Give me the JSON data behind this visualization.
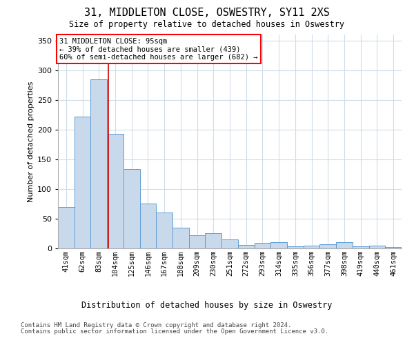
{
  "title1": "31, MIDDLETON CLOSE, OSWESTRY, SY11 2XS",
  "title2": "Size of property relative to detached houses in Oswestry",
  "xlabel": "Distribution of detached houses by size in Oswestry",
  "ylabel": "Number of detached properties",
  "categories": [
    "41sqm",
    "62sqm",
    "83sqm",
    "104sqm",
    "125sqm",
    "146sqm",
    "167sqm",
    "188sqm",
    "209sqm",
    "230sqm",
    "251sqm",
    "272sqm",
    "293sqm",
    "314sqm",
    "335sqm",
    "356sqm",
    "377sqm",
    "398sqm",
    "419sqm",
    "440sqm",
    "461sqm"
  ],
  "values": [
    70,
    222,
    285,
    193,
    133,
    75,
    60,
    35,
    22,
    25,
    15,
    6,
    9,
    11,
    4,
    5,
    7,
    10,
    3,
    5,
    2
  ],
  "bar_color": "#c9d9ec",
  "bar_edge_color": "#5b9bd5",
  "grid_color": "#d0dce8",
  "vline_color": "#cc0000",
  "annotation_line1": "31 MIDDLETON CLOSE: 95sqm",
  "annotation_line2": "← 39% of detached houses are smaller (439)",
  "annotation_line3": "60% of semi-detached houses are larger (682) →",
  "footer1": "Contains HM Land Registry data © Crown copyright and database right 2024.",
  "footer2": "Contains public sector information licensed under the Open Government Licence v3.0.",
  "ylim_max": 360,
  "yticks": [
    0,
    50,
    100,
    150,
    200,
    250,
    300,
    350
  ],
  "property_sqm": 95,
  "bin_edges": [
    41,
    62,
    83,
    104,
    125,
    146,
    167,
    188,
    209,
    230,
    251,
    272,
    293,
    314,
    335,
    356,
    377,
    398,
    419,
    440,
    461,
    482
  ]
}
